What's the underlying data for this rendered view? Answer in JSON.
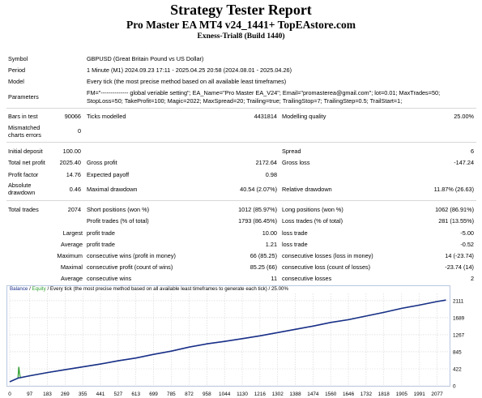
{
  "header": {
    "title": "Strategy Tester Report",
    "subtitle": "Pro Master EA MT4 v24_1441+ TopEAstore.com",
    "server": "Exness-Trial8 (Build 1440)"
  },
  "info": {
    "symbol_label": "Symbol",
    "symbol_value": "GBPUSD (Great Britain Pound vs US Dollar)",
    "period_label": "Period",
    "period_value": "1 Minute (M1) 2024.09.23 17:11 - 2025.04.25 20:58 (2024.08.01 - 2025.04.26)",
    "model_label": "Model",
    "model_value": "Every tick (the most precise method based on all available least timeframes)",
    "parameters_label": "Parameters",
    "parameters_line1": "FM=\"-------------- global veriable setting\"; EA_Name=\"Pro Master EA_V24\"; Email=\"promasterea@gmail.com\"; lot=0.01; MaxTrades=50;",
    "parameters_line2": "StopLoss=50; TakeProfit=100; Magic=2022; MaxSpread=20; Trailing=true; TrailingStop=7; TrailingStep=0.5; TrailStart=1;"
  },
  "quality": {
    "bars_label": "Bars in test",
    "bars_value": "90066",
    "ticks_label": "Ticks modelled",
    "ticks_value": "4431814",
    "mq_label": "Modelling quality",
    "mq_value": "25.00%",
    "mismatched_label_1": "Mismatched",
    "mismatched_label_2": "charts errors",
    "mismatched_value": "0"
  },
  "stats": {
    "initial_deposit_label": "Initial deposit",
    "initial_deposit_value": "100.00",
    "spread_label": "Spread",
    "spread_value": "6",
    "total_net_profit_label": "Total net profit",
    "total_net_profit_value": "2025.40",
    "gross_profit_label": "Gross profit",
    "gross_profit_value": "2172.64",
    "gross_loss_label": "Gross loss",
    "gross_loss_value": "-147.24",
    "profit_factor_label": "Profit factor",
    "profit_factor_value": "14.76",
    "expected_payoff_label": "Expected payoff",
    "expected_payoff_value": "0.98",
    "absolute_drawdown_label_1": "Absolute",
    "absolute_drawdown_label_2": "drawdown",
    "absolute_drawdown_value": "0.46",
    "maximal_drawdown_label": "Maximal drawdown",
    "maximal_drawdown_value": "40.54 (2.07%)",
    "relative_drawdown_label": "Relative drawdown",
    "relative_drawdown_value": "11.87% (26.63)"
  },
  "trades": {
    "total_trades_label": "Total trades",
    "total_trades_value": "2074",
    "short_label": "Short positions (won %)",
    "short_value": "1012 (85.97%)",
    "long_label": "Long positions (won %)",
    "long_value": "1062 (86.91%)",
    "profit_trades_label": "Profit trades (% of total)",
    "profit_trades_value": "1793 (86.45%)",
    "loss_trades_label": "Loss trades (% of total)",
    "loss_trades_value": "281 (13.55%)",
    "largest_label": "Largest",
    "largest_profit_label": "profit trade",
    "largest_profit_value": "10.00",
    "largest_loss_label": "loss trade",
    "largest_loss_value": "-5.00",
    "average_label": "Average",
    "average_profit_label": "profit trade",
    "average_profit_value": "1.21",
    "average_loss_label": "loss trade",
    "average_loss_value": "-0.52",
    "maximum_label": "Maximum",
    "max_cons_wins_label": "consecutive wins (profit in money)",
    "max_cons_wins_value": "66 (85.25)",
    "max_cons_losses_label": "consecutive losses (loss in money)",
    "max_cons_losses_value": "14 (-23.74)",
    "maximal_label": "Maximal",
    "maximal_cons_profit_label": "consecutive profit (count of wins)",
    "maximal_cons_profit_value": "85.25 (66)",
    "maximal_cons_loss_label": "consecutive loss (count of losses)",
    "maximal_cons_loss_value": "-23.74 (14)",
    "average2_label": "Average",
    "avg_cons_wins_label": "consecutive wins",
    "avg_cons_wins_value": "11",
    "avg_cons_losses_label": "consecutive losses",
    "avg_cons_losses_value": "2"
  },
  "chart_legend": {
    "balance": "Balance",
    "sep1": " / ",
    "equity": "Equity",
    "rest": " / Every tick (the most precise method based on all available least timeframes to generate each tick) / 25.00%"
  },
  "colors": {
    "balance": "#1a2f8a",
    "equity": "#2a9d2a",
    "grid": "#d4d4d4",
    "frame": "#b8c7e0"
  },
  "chart_data": {
    "type": "line",
    "x_ticks": [
      "0",
      "97",
      "183",
      "269",
      "355",
      "441",
      "527",
      "613",
      "699",
      "785",
      "872",
      "958",
      "1044",
      "1130",
      "1216",
      "1302",
      "1388",
      "1474",
      "1560",
      "1646",
      "1732",
      "1818",
      "1905",
      "1991",
      "2077"
    ],
    "y_ticks": [
      "2111",
      "1689",
      "1267",
      "845",
      "422",
      "0"
    ],
    "xlim": [
      0,
      2130
    ],
    "ylim": [
      0,
      2290
    ],
    "series": [
      {
        "name": "Balance",
        "x": [
          0,
          40,
          97,
          183,
          269,
          355,
          441,
          527,
          613,
          699,
          785,
          872,
          958,
          1044,
          1130,
          1216,
          1302,
          1388,
          1474,
          1560,
          1646,
          1732,
          1818,
          1905,
          1991,
          2077,
          2120
        ],
        "y": [
          100,
          190,
          250,
          330,
          400,
          470,
          540,
          620,
          690,
          780,
          860,
          960,
          1040,
          1100,
          1170,
          1240,
          1320,
          1400,
          1480,
          1570,
          1640,
          1730,
          1820,
          1920,
          2000,
          2090,
          2125
        ]
      },
      {
        "name": "Equity",
        "x": [
          0,
          40,
          44,
          48,
          52,
          60,
          97,
          183,
          269,
          355,
          441,
          527,
          613,
          699,
          785,
          872,
          958,
          1044,
          1130,
          1216,
          1302,
          1388,
          1474,
          1560,
          1646,
          1732,
          1818,
          1905,
          1991,
          2077,
          2120
        ],
        "y": [
          100,
          190,
          470,
          300,
          200,
          210,
          250,
          330,
          400,
          470,
          540,
          620,
          690,
          780,
          860,
          960,
          1040,
          1100,
          1170,
          1240,
          1320,
          1400,
          1480,
          1570,
          1640,
          1730,
          1820,
          1920,
          2000,
          2090,
          2125
        ]
      }
    ],
    "grid": true
  }
}
